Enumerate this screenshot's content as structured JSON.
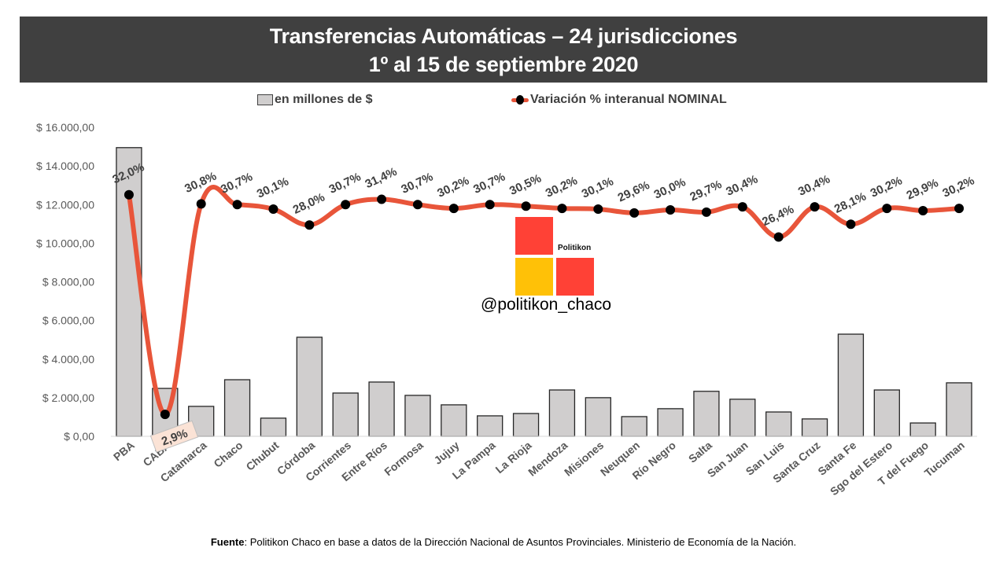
{
  "header": {
    "title_line1": "Transferencias Automáticas – 24 jurisdicciones",
    "title_line2": "1º al 15 de septiembre 2020"
  },
  "legend": {
    "bars_label": "en millones de $",
    "line_label": "Variación % interanual NOMINAL"
  },
  "logo": {
    "brand": "Politikon",
    "handle": "@politikon_chaco",
    "colors": {
      "red": "#ff4136",
      "yellow": "#ffc107"
    }
  },
  "footer": {
    "source_label": "Fuente",
    "source_text": ": Politikon Chaco en base a datos de la Dirección Nacional de Asuntos Provinciales. Ministerio de Economía de la Nación."
  },
  "chart_data": {
    "type": "bar+line",
    "title": "Transferencias Automáticas – 24 jurisdicciones 1º al 15 de septiembre 2020",
    "legend_position": "top",
    "categories": [
      "PBA",
      "CABA",
      "Catamarca",
      "Chaco",
      "Chubut",
      "Córdoba",
      "Corrientes",
      "Entre Ríos",
      "Formosa",
      "Jujuy",
      "La Pampa",
      "La Rioja",
      "Mendoza",
      "Misiones",
      "Neuquen",
      "Río Negro",
      "Salta",
      "San Juan",
      "San Luis",
      "Santa Cruz",
      "Santa Fe",
      "Sgo del Estero",
      "T del Fuego",
      "Tucuman"
    ],
    "y_axis": {
      "ylim": [
        0,
        16000
      ],
      "ticks": [
        0,
        2000,
        4000,
        6000,
        8000,
        10000,
        12000,
        14000,
        16000
      ],
      "tick_labels": [
        "$ 0,00",
        "$ 2.000,00",
        "$ 4.000,00",
        "$ 6.000,00",
        "$ 8.000,00",
        "$ 10.000,00",
        "$ 12.000,00",
        "$ 14.000,00",
        "$ 16.000,00"
      ],
      "grid": false
    },
    "series": [
      {
        "name": "en millones de $",
        "type": "bar",
        "color": "#d0cece",
        "values": [
          14950,
          2480,
          1550,
          2930,
          940,
          5130,
          2240,
          2810,
          2120,
          1630,
          1060,
          1180,
          2400,
          2000,
          1020,
          1430,
          2330,
          1920,
          1260,
          900,
          5290,
          2400,
          690,
          2770
        ]
      },
      {
        "name": "Variación % interanual NOMINAL",
        "type": "line",
        "axis": "secondary",
        "color": "#e8553a",
        "values": [
          32.0,
          2.9,
          30.8,
          30.7,
          30.1,
          28.0,
          30.7,
          31.4,
          30.7,
          30.2,
          30.7,
          30.5,
          30.2,
          30.1,
          29.6,
          30.0,
          29.7,
          30.4,
          26.4,
          30.4,
          28.1,
          30.2,
          29.9,
          30.2
        ],
        "labels": [
          "32,0%",
          "2,9%",
          "30,8%",
          "30,7%",
          "30,1%",
          "28,0%",
          "30,7%",
          "31,4%",
          "30,7%",
          "30,2%",
          "30,7%",
          "30,5%",
          "30,2%",
          "30,1%",
          "29,6%",
          "30,0%",
          "29,7%",
          "30,4%",
          "26,4%",
          "30,4%",
          "28,1%",
          "30,2%",
          "29,9%",
          "30,2%"
        ]
      }
    ]
  }
}
